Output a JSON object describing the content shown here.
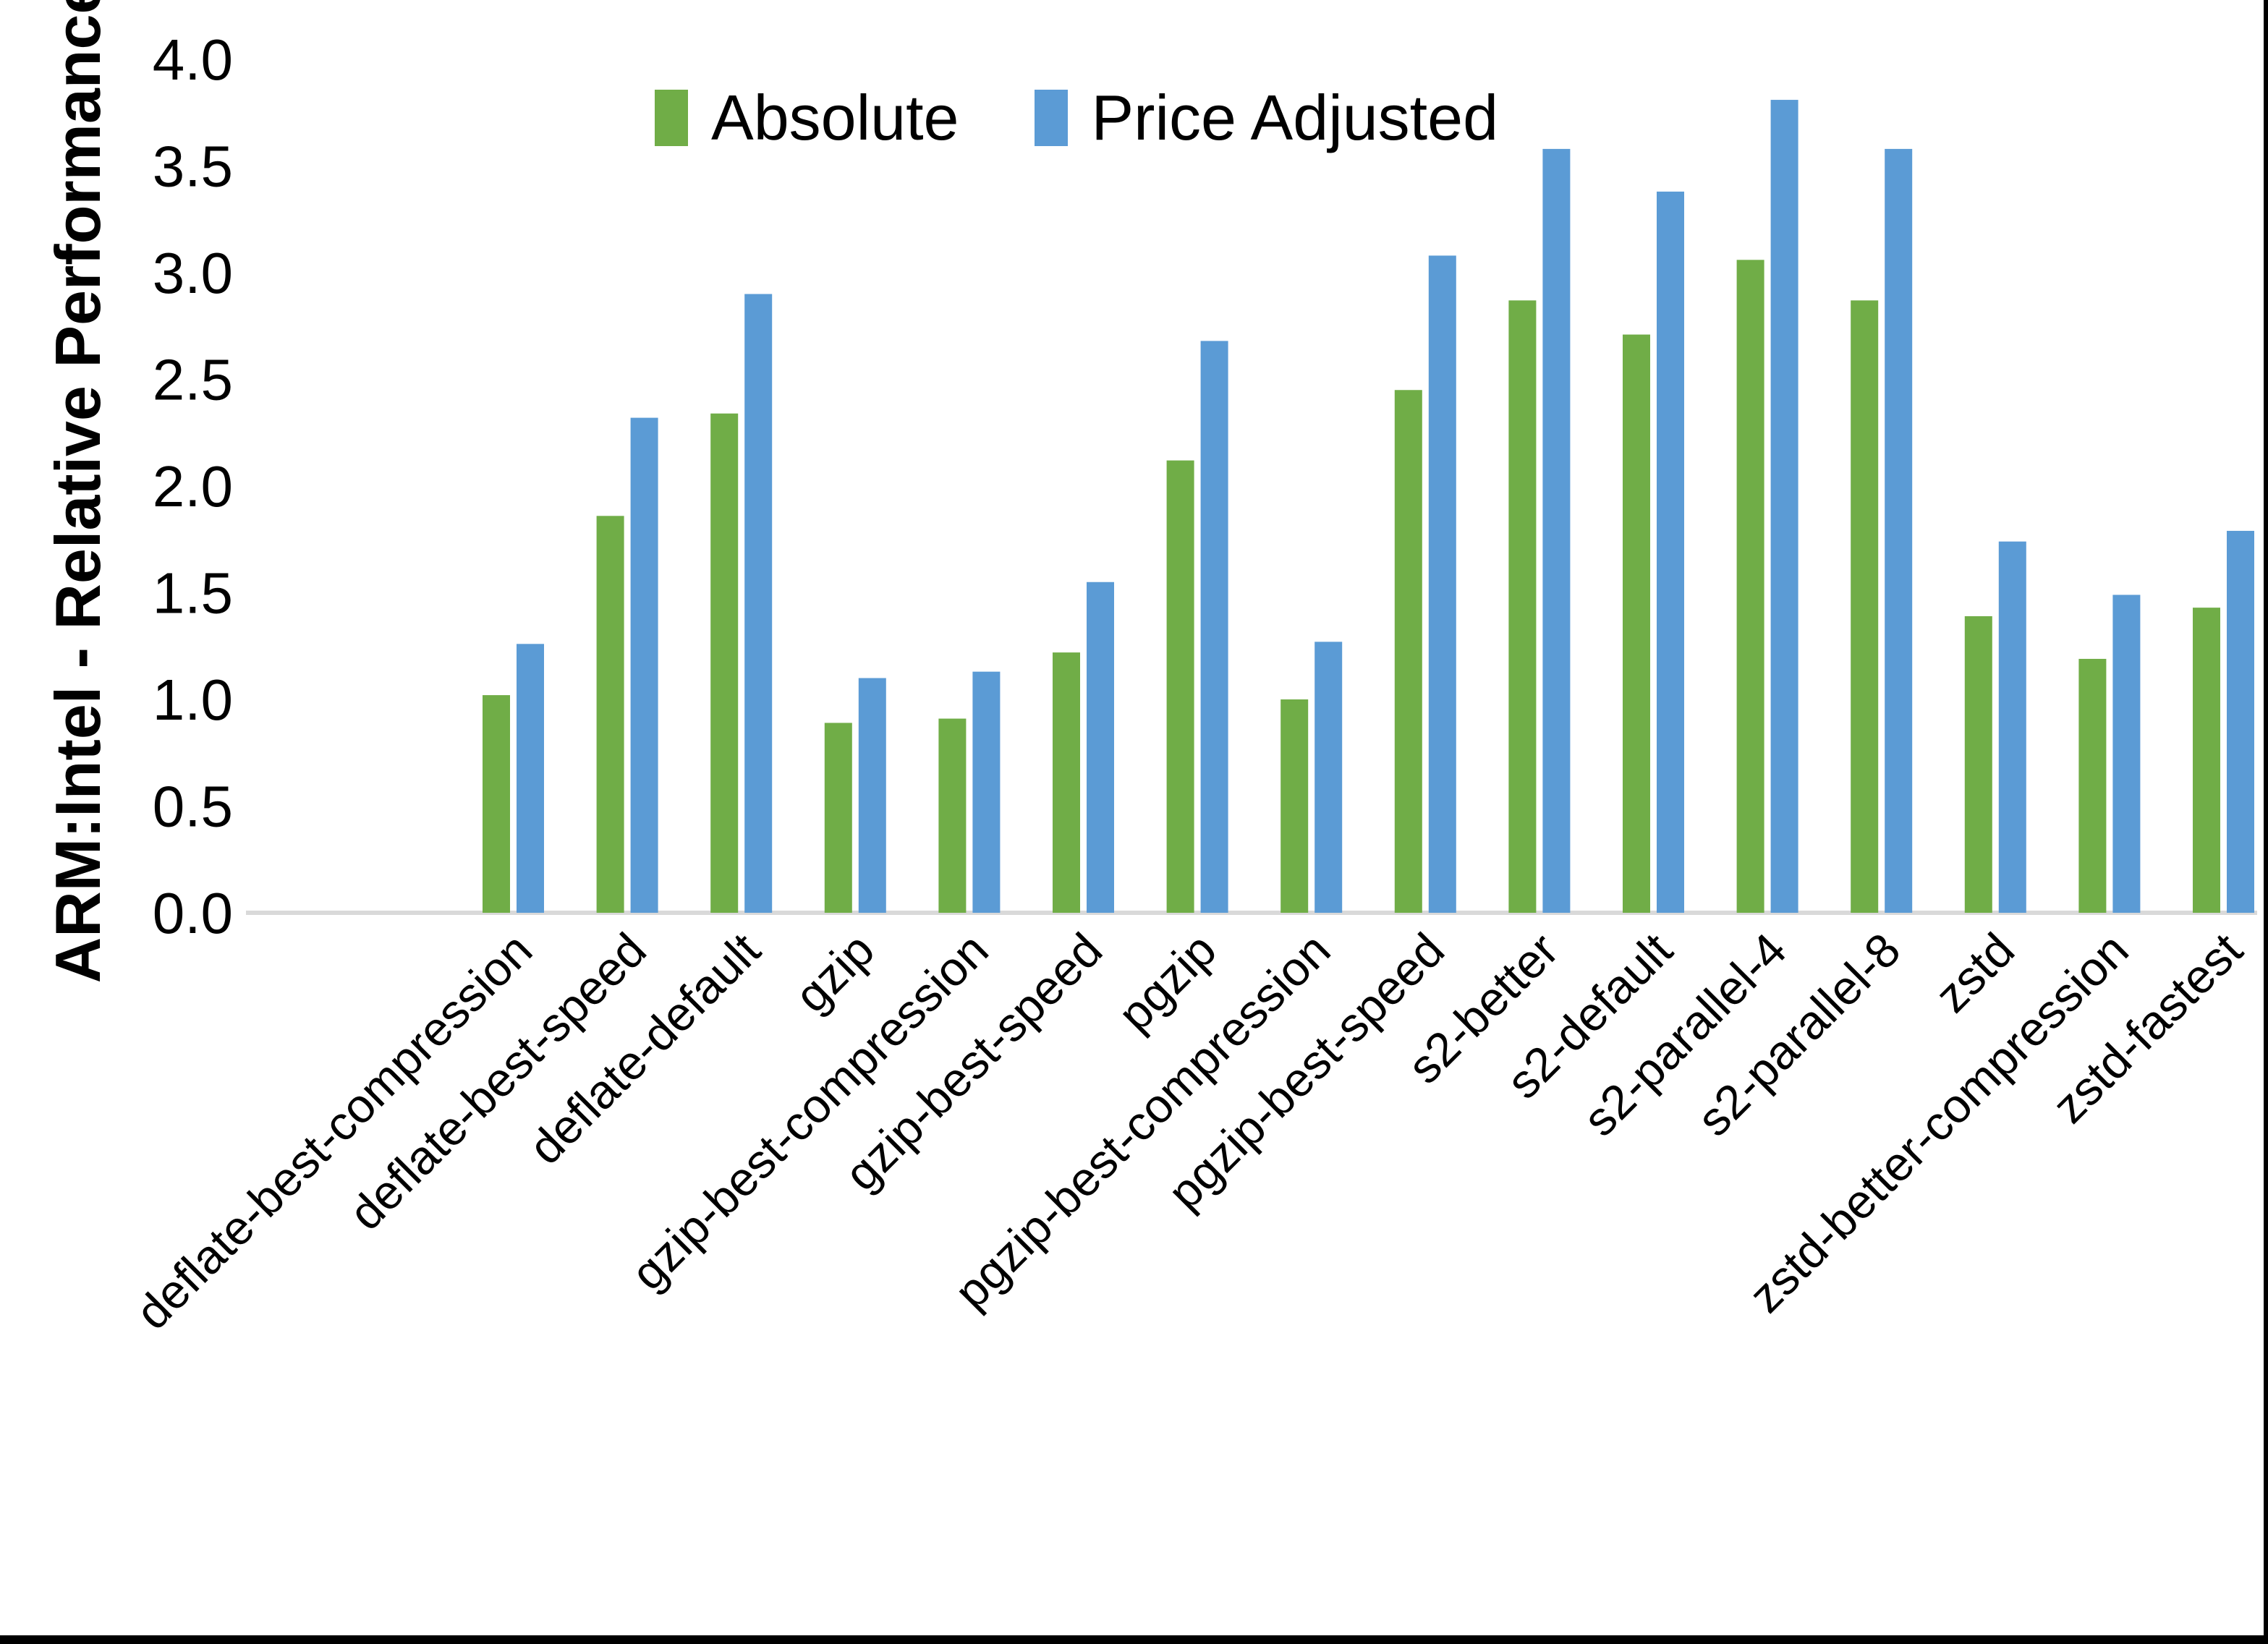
{
  "page": {
    "background": "#FFFFFF",
    "border_right_color": "#000000",
    "border_bottom_color": "#000000"
  },
  "chart_data": {
    "type": "bar",
    "title": "",
    "xlabel": "",
    "ylabel": "ARM:Intel - Relative Performance",
    "ylim": [
      0.0,
      4.0
    ],
    "ytick_step": 0.5,
    "ytick_labels": [
      "0.0",
      "0.5",
      "1.0",
      "1.5",
      "2.0",
      "2.5",
      "3.0",
      "3.5",
      "4.0"
    ],
    "grid": false,
    "legend_position": "top-center",
    "axis_line_color": "#D9D9D9",
    "text_color": "#000000",
    "categories": [
      "deflate-best-compression",
      "deflate-best-speed",
      "deflate-default",
      "gzip",
      "gzip-best-compression",
      "gzip-best-speed",
      "pgzip",
      "pgzip-best-compression",
      "pgzip-best-speed",
      "s2-better",
      "s2-default",
      "s2-parallel-4",
      "s2-parallel-8",
      "zstd",
      "zstd-better-compression",
      "zstd-fastest"
    ],
    "series": [
      {
        "name": "Absolute",
        "color": "#70AD47",
        "values": [
          1.02,
          1.86,
          2.34,
          0.89,
          0.91,
          1.22,
          2.12,
          1.0,
          2.45,
          2.87,
          2.71,
          3.06,
          2.87,
          1.39,
          1.19,
          1.43
        ]
      },
      {
        "name": "Price Adjusted",
        "color": "#5B9BD5",
        "values": [
          1.26,
          2.32,
          2.9,
          1.1,
          1.13,
          1.55,
          2.68,
          1.27,
          3.08,
          3.58,
          3.38,
          3.81,
          3.58,
          1.74,
          1.49,
          1.79
        ]
      }
    ]
  }
}
